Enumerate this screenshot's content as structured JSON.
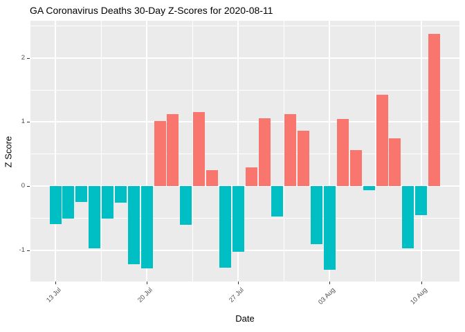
{
  "chart_data": {
    "type": "bar",
    "title": "GA Coronavirus Deaths 30-Day Z-Scores for 2020-08-11",
    "xlabel": "Date",
    "ylabel": "Z Score",
    "x": [
      "2020-07-13",
      "2020-07-14",
      "2020-07-15",
      "2020-07-16",
      "2020-07-17",
      "2020-07-18",
      "2020-07-19",
      "2020-07-20",
      "2020-07-21",
      "2020-07-22",
      "2020-07-23",
      "2020-07-24",
      "2020-07-25",
      "2020-07-26",
      "2020-07-27",
      "2020-07-28",
      "2020-07-29",
      "2020-07-30",
      "2020-07-31",
      "2020-08-01",
      "2020-08-02",
      "2020-08-03",
      "2020-08-04",
      "2020-08-05",
      "2020-08-06",
      "2020-08-07",
      "2020-08-08",
      "2020-08-09",
      "2020-08-10",
      "2020-08-11"
    ],
    "values": [
      -0.59,
      -0.51,
      -0.25,
      -0.97,
      -0.51,
      -0.26,
      -1.22,
      -1.28,
      1.02,
      1.12,
      -0.61,
      1.15,
      0.25,
      -1.27,
      -1.03,
      0.29,
      1.06,
      -0.48,
      1.12,
      0.86,
      -0.91,
      -1.31,
      1.05,
      0.56,
      -0.07,
      1.43,
      0.75,
      -0.97,
      -0.45,
      2.38
    ],
    "x_tick_labels": [
      "13 Jul",
      "20 Jul",
      "27 Jul",
      "03 Aug",
      "10 Aug"
    ],
    "x_tick_indices": [
      0,
      7,
      14,
      21,
      28
    ],
    "x_minor_indices": [
      3.5,
      10.5,
      17.5,
      24.5
    ],
    "y_ticks": [
      -1,
      0,
      1,
      2
    ],
    "y_tick_labels": [
      "-1",
      "0",
      "1",
      "2"
    ],
    "y_minor_ticks": [
      -0.5,
      0.5,
      1.5,
      2.5
    ],
    "ylim": [
      -1.49,
      2.58
    ],
    "grid": "major+minor white gridlines on grey panel",
    "legend": "none",
    "colors": {
      "positive_bar": "#F8766D",
      "negative_bar": "#00BFC4",
      "panel_background": "#EBEBEB",
      "gridline": "#FFFFFF",
      "tick_text": "#4D4D4D",
      "title_text": "#000000"
    }
  }
}
